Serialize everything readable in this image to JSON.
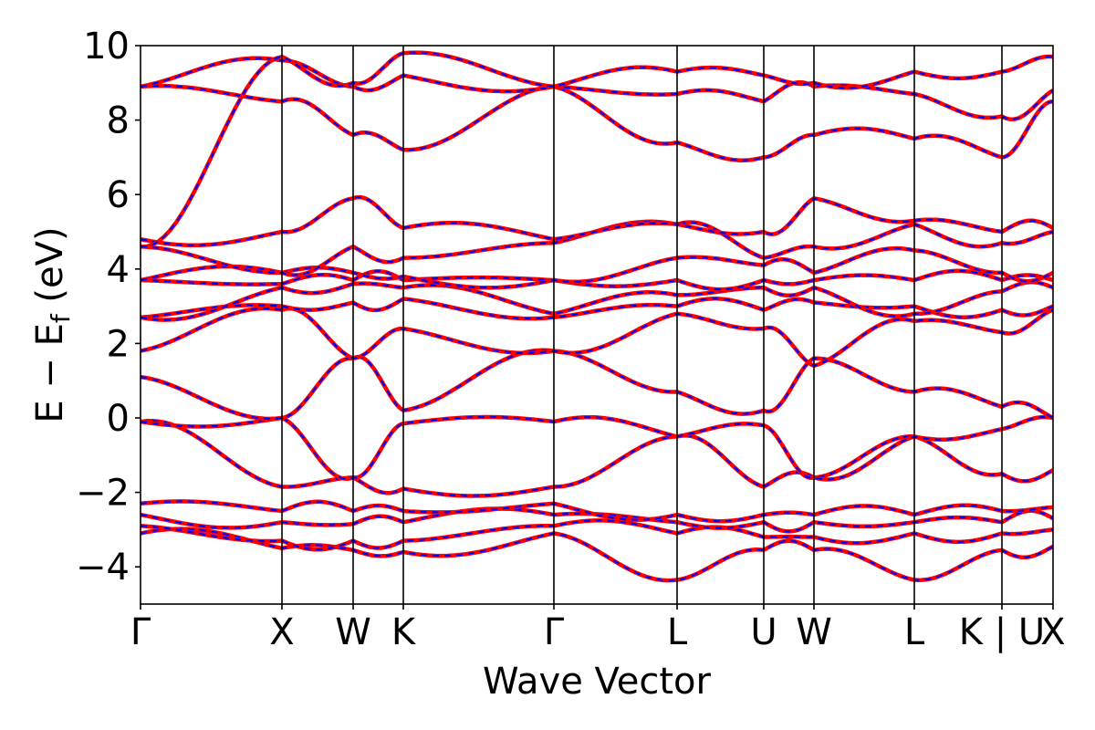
{
  "chart_data": {
    "type": "line",
    "title": "",
    "xlabel": "Wave Vector",
    "ylabel": "E − E_f (eV)",
    "ylabel_parts": {
      "main": "E − E",
      "sub": "f",
      "unit": " (eV)"
    },
    "ylim": [
      -5,
      10
    ],
    "yticks": [
      -4,
      -2,
      0,
      2,
      4,
      6,
      8,
      10
    ],
    "ytick_labels": [
      "−4",
      "−2",
      "0",
      "2",
      "4",
      "6",
      "8",
      "10"
    ],
    "kpath": [
      {
        "label": "Γ",
        "k": 0.0
      },
      {
        "label": "X",
        "k": 0.155
      },
      {
        "label": "W",
        "k": 0.233
      },
      {
        "label": "K",
        "k": 0.288
      },
      {
        "label": "Γ",
        "k": 0.453
      },
      {
        "label": "L",
        "k": 0.588
      },
      {
        "label": "U",
        "k": 0.683
      },
      {
        "label": "W",
        "k": 0.738
      },
      {
        "label": "L",
        "k": 0.848
      },
      {
        "label": "K | U",
        "k": 0.944
      },
      {
        "label": "X",
        "k": 1.0
      }
    ],
    "xlim": [
      0,
      1
    ],
    "grid": false,
    "legend": "none",
    "colors": {
      "solid": "#ff0000",
      "dashed": "#0000ff",
      "vertical": "#000000"
    },
    "series": [
      {
        "x": [
          0,
          0.155,
          0.233,
          0.288,
          0.453,
          0.588,
          0.683,
          0.738,
          0.848,
          0.944,
          1.0
        ],
        "y": [
          -3.1,
          -3.5,
          -3.55,
          -3.6,
          -3.1,
          -4.35,
          -3.55,
          -3.55,
          -4.35,
          -3.55,
          -3.45
        ]
      },
      {
        "x": [
          0,
          0.155,
          0.233,
          0.288,
          0.453,
          0.588,
          0.683,
          0.738,
          0.848,
          0.944,
          1.0
        ],
        "y": [
          -2.9,
          -3.3,
          -3.3,
          -3.3,
          -2.9,
          -3.1,
          -3.2,
          -3.2,
          -3.1,
          -3.1,
          -3.0
        ]
      },
      {
        "x": [
          0,
          0.155,
          0.233,
          0.288,
          0.453,
          0.588,
          0.683,
          0.738,
          0.848,
          0.944,
          1.0
        ],
        "y": [
          -2.6,
          -2.8,
          -2.85,
          -2.8,
          -2.6,
          -2.8,
          -2.8,
          -2.8,
          -2.8,
          -2.8,
          -2.7
        ]
      },
      {
        "x": [
          0,
          0.155,
          0.233,
          0.288,
          0.453,
          0.588,
          0.683,
          0.738,
          0.848,
          0.944,
          1.0
        ],
        "y": [
          -2.3,
          -2.5,
          -2.5,
          -2.5,
          -2.3,
          -2.6,
          -2.6,
          -2.6,
          -2.6,
          -2.5,
          -2.4
        ]
      },
      {
        "x": [
          0,
          0.155,
          0.233,
          0.288,
          0.453,
          0.588,
          0.683,
          0.738,
          0.848,
          0.944,
          1.0
        ],
        "y": [
          -0.1,
          -1.85,
          -1.6,
          -1.9,
          -1.85,
          -0.5,
          -1.85,
          -1.6,
          -0.5,
          -1.5,
          -1.4
        ]
      },
      {
        "x": [
          0,
          0.155,
          0.233,
          0.288,
          0.453,
          0.588,
          0.683,
          0.738,
          0.848,
          0.944,
          1.0
        ],
        "y": [
          -0.1,
          0.0,
          -1.6,
          -0.15,
          -0.1,
          -0.5,
          -0.2,
          -1.6,
          -0.5,
          -0.3,
          0.0
        ]
      },
      {
        "x": [
          0,
          0.155,
          0.233,
          0.288,
          0.453,
          0.588,
          0.683,
          0.738,
          0.848,
          0.944,
          1.0
        ],
        "y": [
          1.1,
          0.0,
          1.6,
          0.2,
          1.8,
          0.7,
          0.2,
          1.6,
          0.7,
          0.3,
          0.0
        ]
      },
      {
        "x": [
          0,
          0.155,
          0.233,
          0.288,
          0.453,
          0.588,
          0.683,
          0.738,
          0.848,
          0.944,
          1.0
        ],
        "y": [
          1.8,
          2.9,
          1.6,
          2.4,
          1.8,
          2.8,
          2.4,
          1.4,
          2.6,
          2.3,
          2.9
        ]
      },
      {
        "x": [
          0,
          0.155,
          0.233,
          0.288,
          0.453,
          0.588,
          0.683,
          0.738,
          0.848,
          0.944,
          1.0
        ],
        "y": [
          2.7,
          3.0,
          3.1,
          3.2,
          2.7,
          3.0,
          2.9,
          3.1,
          3.0,
          2.9,
          3.0
        ]
      },
      {
        "x": [
          0,
          0.155,
          0.233,
          0.288,
          0.453,
          0.588,
          0.683,
          0.738,
          0.848,
          0.944,
          1.0
        ],
        "y": [
          2.7,
          3.5,
          3.6,
          3.5,
          2.8,
          3.3,
          3.5,
          3.5,
          2.8,
          3.4,
          3.5
        ]
      },
      {
        "x": [
          0,
          0.155,
          0.233,
          0.288,
          0.453,
          0.588,
          0.683,
          0.738,
          0.848,
          0.944,
          1.0
        ],
        "y": [
          3.7,
          3.6,
          3.7,
          3.7,
          3.7,
          3.7,
          3.7,
          3.7,
          3.7,
          3.7,
          3.7
        ]
      },
      {
        "x": [
          0,
          0.155,
          0.233,
          0.288,
          0.453,
          0.588,
          0.683,
          0.738,
          0.848,
          0.944,
          1.0
        ],
        "y": [
          3.7,
          3.9,
          3.9,
          3.8,
          3.7,
          4.3,
          4.1,
          3.9,
          4.5,
          3.9,
          3.9
        ]
      },
      {
        "x": [
          0,
          0.155,
          0.233,
          0.288,
          0.453,
          0.588,
          0.683,
          0.738,
          0.848,
          0.944,
          1.0
        ],
        "y": [
          4.6,
          3.9,
          4.6,
          4.3,
          4.7,
          5.2,
          4.3,
          4.6,
          5.2,
          4.7,
          5.0
        ]
      },
      {
        "x": [
          0,
          0.155,
          0.233,
          0.288,
          0.453,
          0.588,
          0.683,
          0.738,
          0.848,
          0.944,
          1.0
        ],
        "y": [
          4.8,
          5.0,
          5.9,
          5.1,
          4.8,
          5.2,
          5.0,
          5.9,
          5.3,
          5.0,
          5.1
        ]
      },
      {
        "x": [
          0,
          0.155,
          0.233,
          0.288,
          0.453,
          0.588,
          0.683,
          0.738,
          0.848,
          0.944,
          1.0
        ],
        "y": [
          8.9,
          8.5,
          7.6,
          7.2,
          8.9,
          7.4,
          7.0,
          7.6,
          7.5,
          7.0,
          8.5
        ]
      },
      {
        "x": [
          0,
          0.155,
          0.233,
          0.288,
          0.453,
          0.588,
          0.683,
          0.738,
          0.848,
          0.944,
          1.0
        ],
        "y": [
          8.9,
          9.6,
          8.9,
          9.2,
          8.9,
          8.7,
          8.5,
          8.9,
          8.7,
          8.1,
          8.8
        ]
      },
      {
        "x": [
          0,
          0.155,
          0.233,
          0.288,
          0.453,
          0.588,
          0.683,
          0.738,
          0.848,
          0.944,
          1.0
        ],
        "y": [
          4.6,
          9.7,
          9.0,
          9.8,
          8.9,
          9.3,
          9.2,
          9.0,
          9.3,
          9.3,
          9.7
        ]
      }
    ]
  }
}
